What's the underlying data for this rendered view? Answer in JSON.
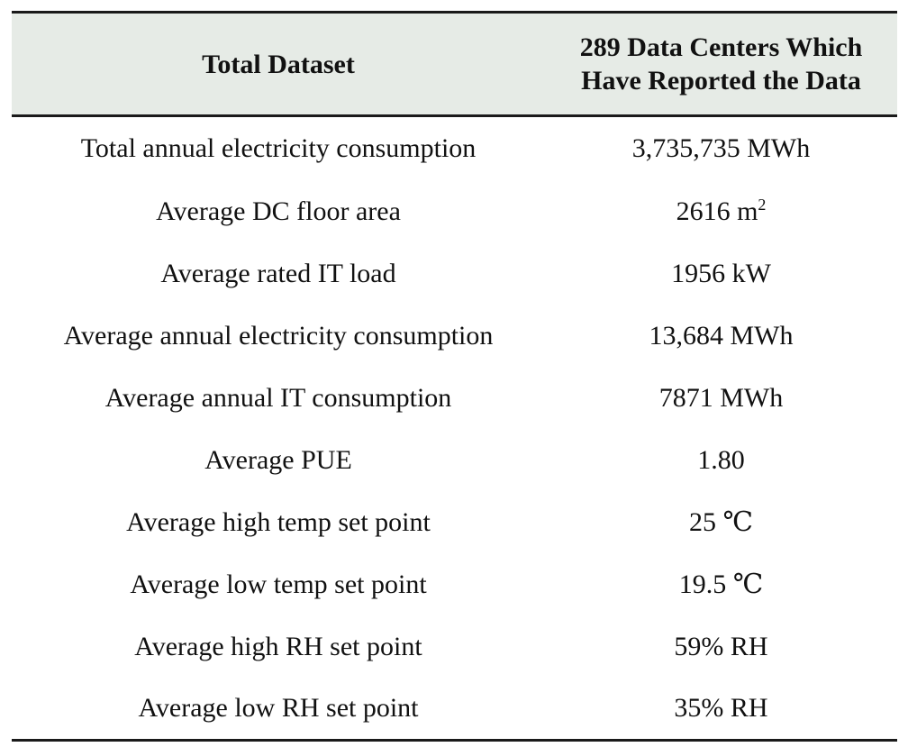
{
  "table": {
    "headers": [
      "Total Dataset",
      "289 Data Centers Which Have Reported the Data"
    ],
    "header_right_lines": [
      "289 Data Centers Which",
      "Have Reported the Data"
    ],
    "rows": [
      {
        "label": "Total annual electricity consumption",
        "value": "3,735,735 MWh"
      },
      {
        "label": "Average DC floor area",
        "value": "2616 m",
        "value_sup": "2"
      },
      {
        "label": "Average rated IT load",
        "value": "1956 kW"
      },
      {
        "label": "Average annual electricity consumption",
        "value": "13,684 MWh"
      },
      {
        "label": "Average annual IT consumption",
        "value": "7871 MWh"
      },
      {
        "label": "Average PUE",
        "value": "1.80"
      },
      {
        "label": "Average high temp set point",
        "value": "25 ℃"
      },
      {
        "label": "Average low temp set point",
        "value": "19.5 ℃"
      },
      {
        "label": "Average high RH set point",
        "value": "59% RH"
      },
      {
        "label": "Average low RH set point",
        "value": "35% RH"
      }
    ]
  },
  "colors": {
    "header_background": "#e6ebe6",
    "rule": "#1a1a1a",
    "text": "#111111"
  }
}
